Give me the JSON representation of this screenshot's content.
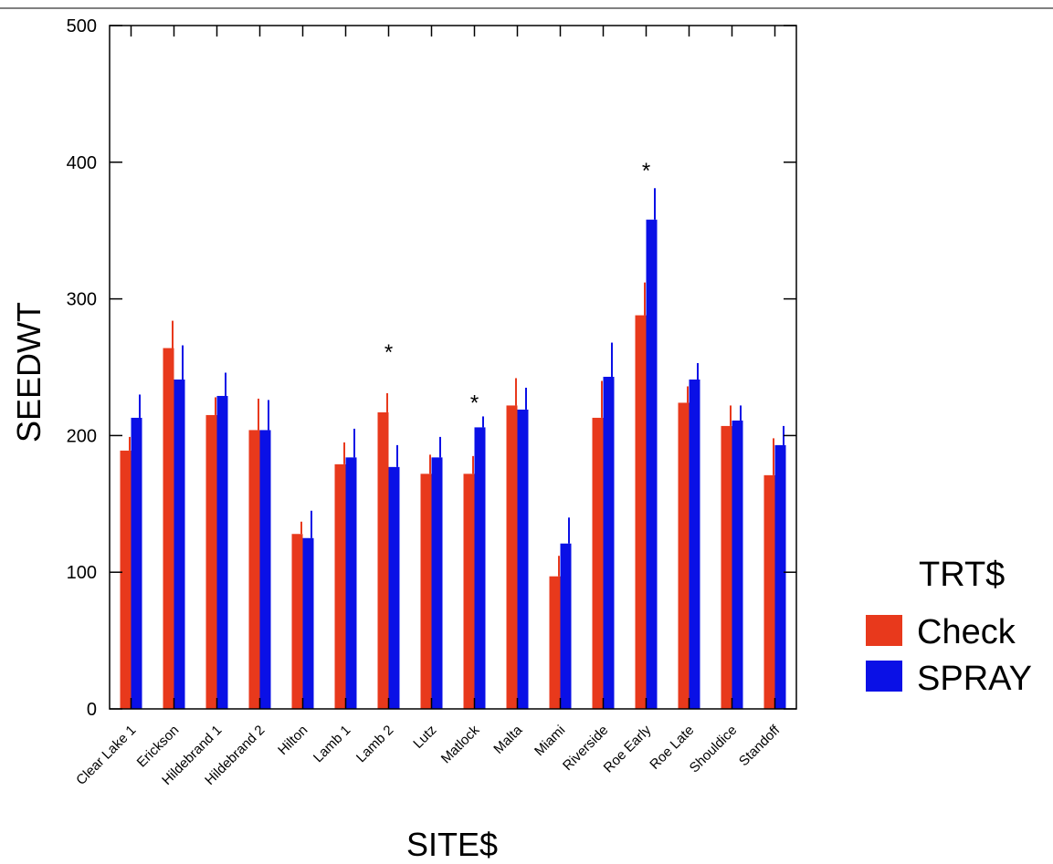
{
  "chart_data": {
    "type": "bar",
    "xlabel": "SITE$",
    "ylabel": "SEEDWT",
    "ylim": [
      0,
      500
    ],
    "yticks": [
      0,
      100,
      200,
      300,
      400,
      500
    ],
    "grid": false,
    "legend_placement": "right",
    "legend_title": "TRT$",
    "categories": [
      "Clear Lake 1",
      "Erickson",
      "Hildebrand 1",
      "Hildebrand 2",
      "Hilton",
      "Lamb 1",
      "Lamb 2",
      "Lutz",
      "Matlock",
      "Malta",
      "Miami",
      "Riverside",
      "Roe Early",
      "Roe Late",
      "Shouldice",
      "Standoff"
    ],
    "series": [
      {
        "name": "Check",
        "color": "#e8391c",
        "values": [
          189,
          264,
          215,
          204,
          128,
          179,
          217,
          172,
          172,
          222,
          97,
          213,
          288,
          224,
          207,
          171
        ],
        "error_upper": [
          199,
          284,
          228,
          227,
          137,
          195,
          231,
          186,
          185,
          242,
          112,
          240,
          312,
          236,
          222,
          198
        ]
      },
      {
        "name": "SPRAY",
        "color": "#0a10e6",
        "values": [
          213,
          241,
          229,
          204,
          125,
          184,
          177,
          184,
          206,
          219,
          121,
          243,
          358,
          241,
          211,
          193
        ],
        "error_upper": [
          230,
          266,
          246,
          226,
          145,
          205,
          193,
          199,
          214,
          235,
          140,
          268,
          381,
          253,
          222,
          207
        ]
      }
    ],
    "annotations": [
      {
        "text": "*",
        "category": "Lamb 2",
        "y": 265
      },
      {
        "text": "*",
        "category": "Matlock",
        "y": 228
      },
      {
        "text": "*",
        "category": "Roe Early",
        "y": 398
      }
    ]
  }
}
